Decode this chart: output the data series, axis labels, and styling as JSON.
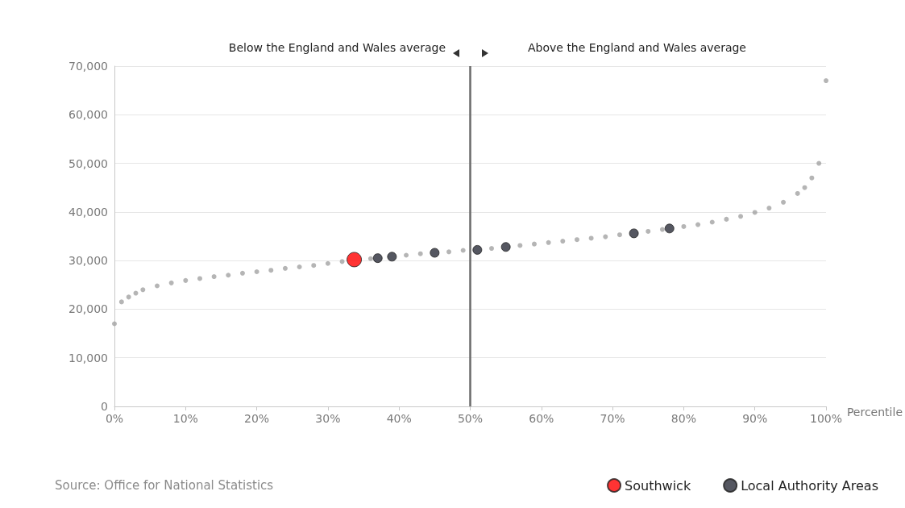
{
  "chart_data": {
    "type": "scatter",
    "xlabel": "Percentile",
    "annotations": [
      "Below the England and Wales average",
      "Above the England and Wales average",
      "Source: Office for National Statistics"
    ],
    "series": [
      {
        "name": "Southwick",
        "color": "#ff0000",
        "x": [
          33.7
        ],
        "values": [
          30200
        ]
      },
      {
        "name": "Local Authority Areas",
        "color": "#2b2d3a",
        "x": [
          37,
          39,
          45,
          51,
          55,
          73,
          78
        ],
        "values": [
          30500,
          30800,
          31600,
          32200,
          32800,
          35600,
          36600
        ]
      },
      {
        "color": "#a3a3a3",
        "x": [
          0,
          1,
          2,
          3,
          4,
          6,
          8,
          10,
          12,
          14,
          16,
          18,
          20,
          22,
          24,
          26,
          28,
          30,
          32,
          36,
          41,
          43,
          47,
          49,
          53,
          57,
          59,
          61,
          63,
          65,
          67,
          69,
          71,
          75,
          77,
          80,
          82,
          84,
          86,
          88,
          90,
          92,
          94,
          96,
          97,
          98,
          99,
          100
        ],
        "values": [
          17000,
          21500,
          22500,
          23300,
          24000,
          24800,
          25400,
          25900,
          26300,
          26700,
          27000,
          27400,
          27700,
          28000,
          28400,
          28700,
          29000,
          29400,
          29800,
          30400,
          31100,
          31400,
          31800,
          32100,
          32500,
          33100,
          33400,
          33700,
          34000,
          34300,
          34600,
          34900,
          35300,
          36000,
          36400,
          37000,
          37400,
          37900,
          38500,
          39100,
          39900,
          40800,
          42000,
          43800,
          45000,
          47000,
          50000,
          67000
        ]
      }
    ],
    "xlim": [
      0,
      100
    ],
    "xticks": [
      {
        "value": 0,
        "label": "0%"
      },
      {
        "value": 10,
        "label": "10%"
      },
      {
        "value": 20,
        "label": "20%"
      },
      {
        "value": 30,
        "label": "30%"
      },
      {
        "value": 40,
        "label": "40%"
      },
      {
        "value": 50,
        "label": "50%"
      },
      {
        "value": 60,
        "label": "60%"
      },
      {
        "value": 70,
        "label": "70%"
      },
      {
        "value": 80,
        "label": "80%"
      },
      {
        "value": 90,
        "label": "90%"
      },
      {
        "value": 100,
        "label": "100%"
      }
    ],
    "ylim": [
      0,
      70000
    ],
    "yticks": [
      {
        "value": 0,
        "label": "0"
      },
      {
        "value": 10000,
        "label": "10,000"
      },
      {
        "value": 20000,
        "label": "20,000"
      },
      {
        "value": 30000,
        "label": "30,000"
      },
      {
        "value": 40000,
        "label": "40,000"
      },
      {
        "value": 50000,
        "label": "50,000"
      },
      {
        "value": 60000,
        "label": "60,000"
      },
      {
        "value": 70000,
        "label": "70,000"
      }
    ],
    "ref_lines": [
      {
        "axis": "x",
        "value": 50,
        "color": "#6b6b6b"
      }
    ],
    "grid": "y",
    "legend": "bottom right",
    "marker": "circle"
  }
}
